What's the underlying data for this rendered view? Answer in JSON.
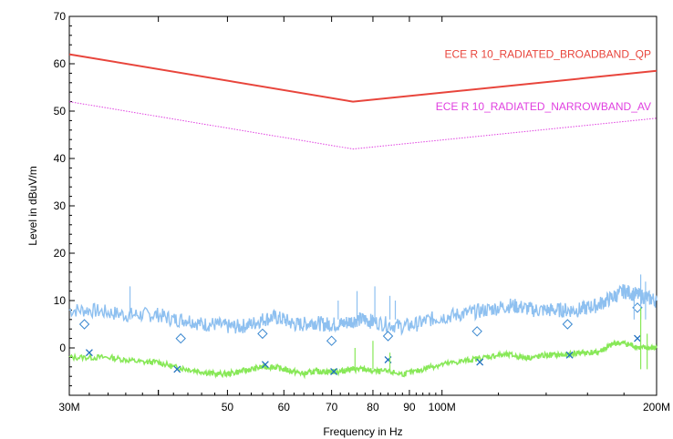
{
  "chart_data": {
    "type": "line",
    "title": "",
    "xlabel": "Frequency in Hz",
    "ylabel": "Level in dBuV/m",
    "xscale": "log",
    "xlim": [
      30,
      200
    ],
    "ylim": [
      -10,
      70
    ],
    "x_tick_labels": [
      "30M",
      "50",
      "60",
      "70",
      "80",
      "90",
      "100M",
      "200M"
    ],
    "x_tick_values": [
      30,
      50,
      60,
      70,
      80,
      90,
      100,
      200
    ],
    "y_tick_labels": [
      "0",
      "10",
      "20",
      "30",
      "40",
      "50",
      "60",
      "70"
    ],
    "y_tick_values": [
      0,
      10,
      20,
      30,
      40,
      50,
      60,
      70
    ],
    "grid": false,
    "legend": "inline, right side",
    "limit_lines": [
      {
        "name": "ECE R 10_RADIATED_BROADBAND_QP",
        "color": "#e8453c",
        "style": "solid",
        "points": [
          [
            30,
            62
          ],
          [
            75,
            52
          ],
          [
            200,
            58.5
          ]
        ]
      },
      {
        "name": "ECE R 10_RADIATED_NARROWBAND_AV",
        "color": "#e040e0",
        "style": "dotted",
        "points": [
          [
            30,
            52
          ],
          [
            75,
            42
          ],
          [
            200,
            48.5
          ]
        ]
      }
    ],
    "series": [
      {
        "color": "#8ec0f0",
        "x": [
          30,
          32,
          34,
          36,
          38,
          40,
          42,
          44,
          46,
          48,
          50,
          52,
          54,
          56,
          58,
          60,
          62,
          64,
          66,
          68,
          70,
          72,
          74,
          76,
          78,
          80,
          84,
          88,
          92,
          96,
          100,
          105,
          110,
          115,
          120,
          125,
          130,
          135,
          140,
          145,
          150,
          155,
          160,
          165,
          170,
          175,
          180,
          185,
          190,
          195,
          200
        ],
        "values": [
          8,
          8,
          7.5,
          7,
          7,
          7,
          6,
          6,
          5,
          5,
          4.5,
          4.5,
          5,
          6,
          6.5,
          6,
          5,
          5,
          5.5,
          5,
          5,
          5,
          5.5,
          6,
          6,
          5.5,
          5,
          4.5,
          5,
          6,
          6.5,
          7,
          7.5,
          8,
          8.5,
          9,
          8.5,
          8,
          8,
          8,
          8,
          8,
          8.5,
          9,
          10,
          11,
          12,
          11.5,
          11,
          10.5,
          10
        ]
      },
      {
        "color": "#88e858",
        "x": [
          30,
          32,
          34,
          36,
          38,
          40,
          42,
          44,
          46,
          48,
          50,
          52,
          54,
          56,
          58,
          60,
          62,
          64,
          66,
          68,
          70,
          72,
          74,
          76,
          78,
          80,
          84,
          88,
          92,
          96,
          100,
          105,
          110,
          115,
          120,
          125,
          130,
          135,
          140,
          145,
          150,
          155,
          160,
          165,
          170,
          175,
          180,
          185,
          190,
          195,
          200
        ],
        "values": [
          -2,
          -2,
          -2,
          -2.5,
          -3,
          -3,
          -4,
          -4.5,
          -5,
          -5.5,
          -5.5,
          -5,
          -4.5,
          -4,
          -4,
          -4.5,
          -5,
          -5.5,
          -5,
          -5,
          -5,
          -5,
          -4.5,
          -4.5,
          -4.5,
          -5,
          -5,
          -5.5,
          -5,
          -4,
          -3.5,
          -3,
          -2.5,
          -2,
          -1.5,
          -1.5,
          -2,
          -2,
          -1.5,
          -1.5,
          -1.5,
          -1,
          -1,
          -1,
          0,
          1,
          1,
          0.5,
          0,
          0,
          0
        ]
      },
      {
        "color": "#3a88d0",
        "marker": "diamond",
        "x": [
          31.5,
          43,
          56,
          70,
          84,
          112,
          150,
          188
        ],
        "values": [
          5,
          2,
          3,
          1.5,
          2.5,
          3.5,
          5,
          8.5
        ]
      },
      {
        "color": "#2070c0",
        "marker": "x",
        "x": [
          32,
          42.5,
          56.5,
          70.5,
          84,
          113,
          151,
          188
        ],
        "values": [
          -1,
          -4.5,
          -3.5,
          -5,
          -2.5,
          -3,
          -1.5,
          2
        ]
      }
    ],
    "spikes": [
      {
        "color": "#8ec0f0",
        "x": [
          36.5,
          71.5,
          76,
          80.5,
          84.5,
          86,
          186,
          190,
          193
        ],
        "values": [
          13,
          10,
          12,
          13,
          11,
          10,
          12,
          15.5,
          14
        ]
      },
      {
        "color": "#88e858",
        "x": [
          75.5,
          80,
          84.5,
          190,
          194
        ],
        "values": [
          0,
          1.5,
          -1,
          8.5,
          3
        ]
      }
    ]
  }
}
